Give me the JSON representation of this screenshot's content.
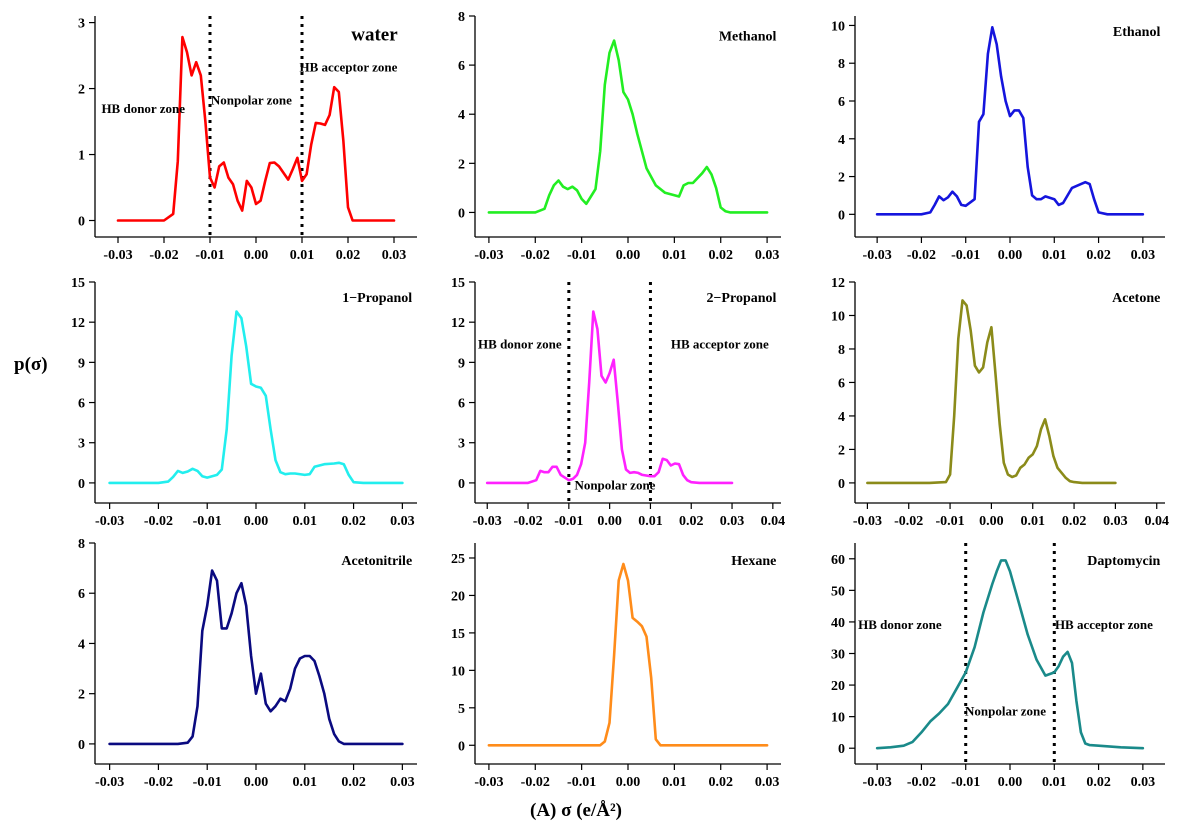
{
  "figure": {
    "ylabel": "p(σ)",
    "xlabel": "(A)  σ (e/Å²)"
  },
  "chart_data": [
    {
      "type": "line",
      "title": "water",
      "color": "#ff0000",
      "xlim": [
        -0.035,
        0.035
      ],
      "xticks": [
        -0.03,
        -0.02,
        -0.01,
        0.0,
        0.01,
        0.02,
        0.03
      ],
      "ylim": [
        -0.25,
        3.1
      ],
      "yticks": [
        0,
        1,
        2,
        3
      ],
      "zone_lines": [
        -0.01,
        0.01
      ],
      "annotations": [
        "HB donor zone",
        "Nonpolar zone",
        "HB acceptor zone"
      ],
      "series": [
        {
          "x": [
            -0.03,
            -0.025,
            -0.02,
            -0.018,
            -0.017,
            -0.016,
            -0.015,
            -0.014,
            -0.013,
            -0.012,
            -0.011,
            -0.01,
            -0.009,
            -0.008,
            -0.007,
            -0.006,
            -0.005,
            -0.004,
            -0.003,
            -0.002,
            -0.001,
            0.0,
            0.001,
            0.002,
            0.003,
            0.004,
            0.005,
            0.006,
            0.007,
            0.008,
            0.009,
            0.01,
            0.011,
            0.012,
            0.013,
            0.014,
            0.015,
            0.016,
            0.017,
            0.018,
            0.019,
            0.02,
            0.021,
            0.022,
            0.025,
            0.03
          ],
          "y": [
            0,
            0,
            0,
            0.1,
            0.9,
            2.78,
            2.55,
            2.2,
            2.4,
            2.2,
            1.5,
            0.65,
            0.5,
            0.82,
            0.88,
            0.65,
            0.55,
            0.3,
            0.15,
            0.6,
            0.5,
            0.25,
            0.3,
            0.6,
            0.87,
            0.88,
            0.82,
            0.72,
            0.62,
            0.78,
            0.95,
            0.6,
            0.7,
            1.15,
            1.48,
            1.47,
            1.45,
            1.6,
            2.02,
            1.95,
            1.2,
            0.2,
            0.0,
            0,
            0,
            0
          ]
        }
      ]
    },
    {
      "type": "line",
      "title": "Methanol",
      "color": "#22ee22",
      "xlim": [
        -0.033,
        0.033
      ],
      "xticks": [
        -0.03,
        -0.02,
        -0.01,
        0.0,
        0.01,
        0.02,
        0.03
      ],
      "ylim": [
        -1.0,
        8.0
      ],
      "yticks": [
        0,
        2,
        4,
        6,
        8
      ],
      "zone_lines": [],
      "annotations": [],
      "series": [
        {
          "x": [
            -0.03,
            -0.02,
            -0.018,
            -0.017,
            -0.016,
            -0.015,
            -0.014,
            -0.013,
            -0.012,
            -0.011,
            -0.01,
            -0.009,
            -0.008,
            -0.007,
            -0.006,
            -0.005,
            -0.004,
            -0.003,
            -0.002,
            -0.001,
            0.0,
            0.001,
            0.002,
            0.004,
            0.006,
            0.008,
            0.01,
            0.011,
            0.012,
            0.013,
            0.014,
            0.016,
            0.017,
            0.018,
            0.019,
            0.02,
            0.021,
            0.022,
            0.025,
            0.03
          ],
          "y": [
            0,
            0,
            0.15,
            0.7,
            1.1,
            1.3,
            1.05,
            0.95,
            1.05,
            0.9,
            0.55,
            0.35,
            0.65,
            0.95,
            2.5,
            5.2,
            6.5,
            7.0,
            6.2,
            4.9,
            4.6,
            4.0,
            3.2,
            1.8,
            1.1,
            0.8,
            0.7,
            0.65,
            1.1,
            1.2,
            1.2,
            1.6,
            1.85,
            1.55,
            1.0,
            0.2,
            0.05,
            0,
            0,
            0
          ]
        }
      ]
    },
    {
      "type": "line",
      "title": "Ethanol",
      "color": "#1515dd",
      "xlim": [
        -0.035,
        0.035
      ],
      "xticks": [
        -0.03,
        -0.02,
        -0.01,
        0.0,
        0.01,
        0.02,
        0.03
      ],
      "ylim": [
        -1.2,
        10.5
      ],
      "yticks": [
        0,
        2,
        4,
        6,
        8,
        10
      ],
      "zone_lines": [],
      "annotations": [],
      "series": [
        {
          "x": [
            -0.03,
            -0.02,
            -0.018,
            -0.017,
            -0.016,
            -0.015,
            -0.014,
            -0.013,
            -0.012,
            -0.011,
            -0.01,
            -0.008,
            -0.007,
            -0.006,
            -0.005,
            -0.004,
            -0.003,
            -0.002,
            -0.001,
            0.0,
            0.001,
            0.002,
            0.003,
            0.004,
            0.005,
            0.006,
            0.007,
            0.008,
            0.01,
            0.011,
            0.012,
            0.014,
            0.016,
            0.017,
            0.018,
            0.019,
            0.02,
            0.022,
            0.025,
            0.03
          ],
          "y": [
            0,
            0,
            0.1,
            0.5,
            0.95,
            0.75,
            0.9,
            1.2,
            0.95,
            0.5,
            0.45,
            0.8,
            4.9,
            5.3,
            8.5,
            9.9,
            9.0,
            7.3,
            6.0,
            5.2,
            5.5,
            5.5,
            5.1,
            2.5,
            1.0,
            0.8,
            0.8,
            0.95,
            0.8,
            0.5,
            0.6,
            1.4,
            1.6,
            1.7,
            1.6,
            0.8,
            0.1,
            0,
            0,
            0
          ]
        }
      ]
    },
    {
      "type": "line",
      "title": "1−Propanol",
      "color": "#22eeee",
      "xlim": [
        -0.033,
        0.033
      ],
      "xticks": [
        -0.03,
        -0.02,
        -0.01,
        0.0,
        0.01,
        0.02,
        0.03
      ],
      "ylim": [
        -1.5,
        15.0
      ],
      "yticks": [
        0,
        3,
        6,
        9,
        12,
        15
      ],
      "zone_lines": [],
      "annotations": [],
      "series": [
        {
          "x": [
            -0.03,
            -0.02,
            -0.018,
            -0.017,
            -0.016,
            -0.015,
            -0.014,
            -0.013,
            -0.012,
            -0.011,
            -0.01,
            -0.008,
            -0.007,
            -0.006,
            -0.005,
            -0.004,
            -0.003,
            -0.002,
            -0.001,
            0.0,
            0.001,
            0.002,
            0.003,
            0.004,
            0.005,
            0.006,
            0.007,
            0.008,
            0.01,
            0.011,
            0.012,
            0.013,
            0.014,
            0.016,
            0.017,
            0.018,
            0.019,
            0.02,
            0.022,
            0.025,
            0.03
          ],
          "y": [
            0,
            0,
            0.1,
            0.45,
            0.9,
            0.75,
            0.85,
            1.05,
            0.9,
            0.5,
            0.4,
            0.6,
            1.0,
            4.0,
            9.5,
            12.8,
            12.3,
            10.2,
            7.4,
            7.2,
            7.1,
            6.5,
            4.0,
            1.7,
            0.8,
            0.65,
            0.7,
            0.7,
            0.6,
            0.65,
            1.2,
            1.3,
            1.4,
            1.45,
            1.5,
            1.4,
            0.6,
            0.05,
            0,
            0,
            0
          ]
        }
      ]
    },
    {
      "type": "line",
      "title": "2−Propanol",
      "color": "#ff22ff",
      "xlim": [
        -0.033,
        0.042
      ],
      "xticks": [
        -0.03,
        -0.02,
        -0.01,
        0.0,
        0.01,
        0.02,
        0.03,
        0.04
      ],
      "ylim": [
        -1.5,
        15.0
      ],
      "yticks": [
        0,
        3,
        6,
        9,
        12,
        15
      ],
      "zone_lines": [
        -0.01,
        0.01
      ],
      "annotations": [
        "HB donor zone",
        "HB acceptor zone",
        "Nonpolar zone"
      ],
      "series": [
        {
          "x": [
            -0.03,
            -0.02,
            -0.018,
            -0.017,
            -0.016,
            -0.015,
            -0.014,
            -0.013,
            -0.012,
            -0.011,
            -0.01,
            -0.009,
            -0.008,
            -0.007,
            -0.006,
            -0.005,
            -0.004,
            -0.003,
            -0.002,
            -0.001,
            0.0,
            0.001,
            0.002,
            0.003,
            0.004,
            0.005,
            0.006,
            0.007,
            0.008,
            0.01,
            0.011,
            0.012,
            0.013,
            0.014,
            0.015,
            0.016,
            0.017,
            0.018,
            0.019,
            0.02,
            0.022,
            0.025,
            0.03
          ],
          "y": [
            0,
            0,
            0.2,
            0.9,
            0.8,
            0.8,
            1.2,
            1.2,
            0.6,
            0.4,
            0.2,
            0.3,
            0.6,
            1.4,
            3.0,
            7.5,
            12.8,
            11.5,
            8.0,
            7.5,
            8.2,
            9.2,
            6.0,
            2.5,
            1.0,
            0.75,
            0.8,
            0.75,
            0.6,
            0.5,
            0.5,
            0.8,
            1.8,
            1.7,
            1.3,
            1.45,
            1.4,
            0.6,
            0.2,
            0.05,
            0,
            0,
            0
          ]
        }
      ]
    },
    {
      "type": "line",
      "title": "Acetone",
      "color": "#8b8b1a",
      "xlim": [
        -0.033,
        0.042
      ],
      "xticks": [
        -0.03,
        -0.02,
        -0.01,
        0.0,
        0.01,
        0.02,
        0.03,
        0.04
      ],
      "ylim": [
        -1.2,
        12.0
      ],
      "yticks": [
        0,
        2,
        4,
        6,
        8,
        10,
        12
      ],
      "zone_lines": [],
      "annotations": [],
      "series": [
        {
          "x": [
            -0.03,
            -0.015,
            -0.011,
            -0.01,
            -0.009,
            -0.008,
            -0.007,
            -0.006,
            -0.005,
            -0.004,
            -0.003,
            -0.002,
            -0.001,
            0.0,
            0.001,
            0.002,
            0.003,
            0.004,
            0.005,
            0.006,
            0.007,
            0.008,
            0.009,
            0.01,
            0.011,
            0.012,
            0.013,
            0.014,
            0.015,
            0.016,
            0.017,
            0.018,
            0.019,
            0.02,
            0.022,
            0.03
          ],
          "y": [
            0,
            0,
            0.05,
            0.5,
            4.0,
            8.6,
            10.9,
            10.6,
            9.1,
            7.0,
            6.6,
            6.9,
            8.4,
            9.3,
            6.5,
            3.5,
            1.2,
            0.5,
            0.35,
            0.45,
            0.9,
            1.1,
            1.5,
            1.7,
            2.2,
            3.2,
            3.8,
            2.8,
            1.6,
            0.9,
            0.6,
            0.3,
            0.1,
            0.05,
            0,
            0
          ]
        }
      ]
    },
    {
      "type": "line",
      "title": "Acetonitrile",
      "color": "#0a0a80",
      "xlim": [
        -0.033,
        0.033
      ],
      "xticks": [
        -0.03,
        -0.02,
        -0.01,
        0.0,
        0.01,
        0.02,
        0.03
      ],
      "ylim": [
        -0.8,
        8.0
      ],
      "yticks": [
        0,
        2,
        4,
        6,
        8
      ],
      "zone_lines": [],
      "annotations": [],
      "series": [
        {
          "x": [
            -0.03,
            -0.016,
            -0.014,
            -0.013,
            -0.012,
            -0.011,
            -0.01,
            -0.009,
            -0.008,
            -0.007,
            -0.006,
            -0.005,
            -0.004,
            -0.003,
            -0.002,
            -0.001,
            0.0,
            0.001,
            0.002,
            0.003,
            0.004,
            0.005,
            0.006,
            0.007,
            0.008,
            0.009,
            0.01,
            0.011,
            0.012,
            0.013,
            0.014,
            0.015,
            0.016,
            0.017,
            0.018,
            0.02,
            0.03
          ],
          "y": [
            0,
            0,
            0.05,
            0.3,
            1.5,
            4.5,
            5.5,
            6.9,
            6.5,
            4.6,
            4.6,
            5.2,
            6.0,
            6.4,
            5.5,
            3.5,
            2.0,
            2.8,
            1.6,
            1.3,
            1.5,
            1.8,
            1.7,
            2.2,
            3.0,
            3.4,
            3.5,
            3.5,
            3.3,
            2.7,
            2.0,
            1.0,
            0.4,
            0.1,
            0,
            0,
            0
          ]
        }
      ]
    },
    {
      "type": "line",
      "title": "Hexane",
      "color": "#ff8c1a",
      "xlim": [
        -0.033,
        0.033
      ],
      "xticks": [
        -0.03,
        -0.02,
        -0.01,
        0.0,
        0.01,
        0.02,
        0.03
      ],
      "ylim": [
        -2.5,
        27.0
      ],
      "yticks": [
        0,
        5,
        10,
        15,
        20,
        25
      ],
      "zone_lines": [],
      "annotations": [],
      "series": [
        {
          "x": [
            -0.03,
            -0.006,
            -0.005,
            -0.004,
            -0.003,
            -0.002,
            -0.001,
            0.0,
            0.001,
            0.002,
            0.003,
            0.004,
            0.005,
            0.006,
            0.007,
            0.01,
            0.03
          ],
          "y": [
            0,
            0,
            0.5,
            3.0,
            12.0,
            22.0,
            24.2,
            22.0,
            17.0,
            16.5,
            15.9,
            14.5,
            9.0,
            0.8,
            0,
            0,
            0
          ]
        }
      ]
    },
    {
      "type": "line",
      "title": "Daptomycin",
      "color": "#1a8a8a",
      "xlim": [
        -0.035,
        0.035
      ],
      "xticks": [
        -0.03,
        -0.02,
        -0.01,
        0.0,
        0.01,
        0.02,
        0.03
      ],
      "ylim": [
        -5.0,
        65.0
      ],
      "yticks": [
        0,
        10,
        20,
        30,
        40,
        50,
        60
      ],
      "zone_lines": [
        -0.01,
        0.01
      ],
      "annotations": [
        "HB donor zone",
        "HB acceptor zone",
        "Nonpolar zone"
      ],
      "series": [
        {
          "x": [
            -0.03,
            -0.027,
            -0.024,
            -0.022,
            -0.02,
            -0.018,
            -0.016,
            -0.014,
            -0.012,
            -0.01,
            -0.008,
            -0.006,
            -0.004,
            -0.003,
            -0.002,
            -0.001,
            0.0,
            0.002,
            0.004,
            0.006,
            0.008,
            0.01,
            0.011,
            0.012,
            0.013,
            0.014,
            0.015,
            0.016,
            0.017,
            0.018,
            0.02,
            0.025,
            0.03
          ],
          "y": [
            0,
            0.3,
            0.8,
            2.0,
            5.0,
            8.5,
            11.0,
            14.0,
            19.0,
            24.0,
            32.0,
            43.0,
            52.0,
            56.0,
            59.5,
            59.5,
            56.0,
            46.0,
            36.0,
            28.0,
            23.0,
            24.0,
            26.0,
            29.0,
            30.5,
            27.0,
            15.0,
            5.0,
            1.5,
            1.0,
            0.8,
            0.3,
            0
          ]
        }
      ]
    }
  ]
}
